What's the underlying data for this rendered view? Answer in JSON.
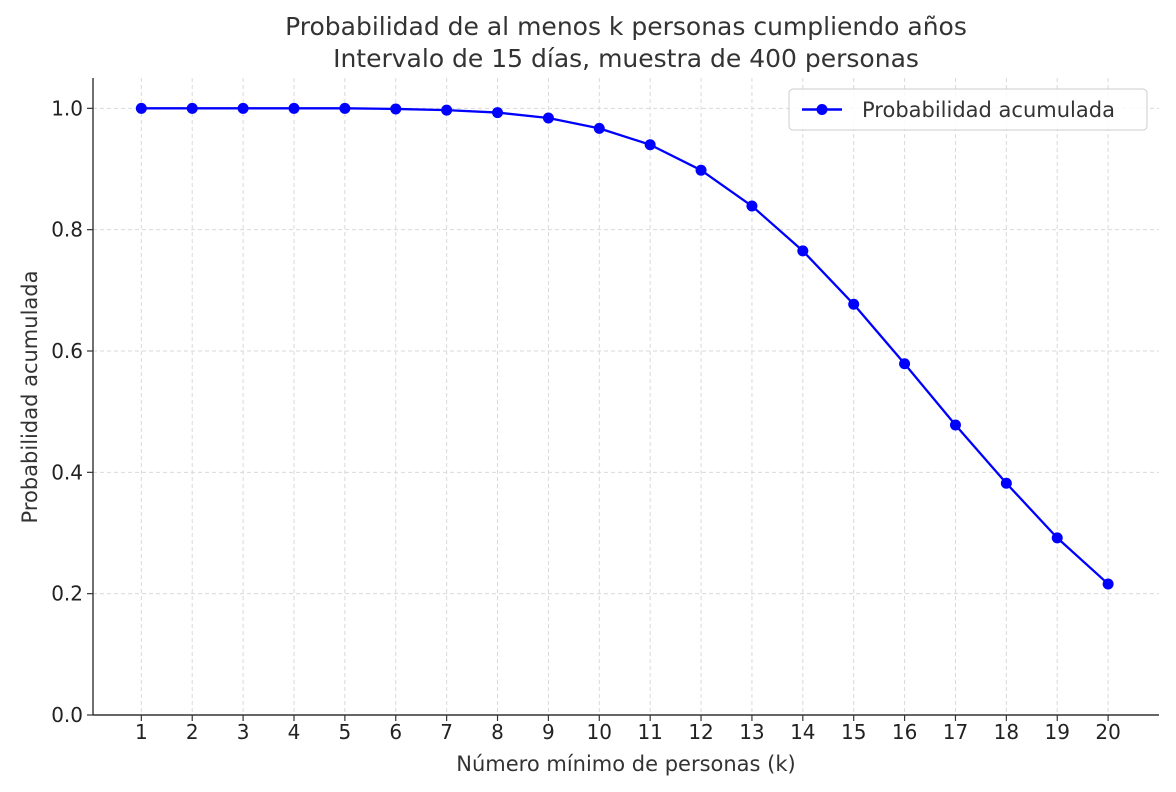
{
  "chart_data": {
    "type": "line",
    "title": "Probabilidad de al menos k personas cumpliendo años",
    "subtitle": "Intervalo de 15 días, muestra de 400 personas",
    "xlabel": "Número mínimo de personas (k)",
    "ylabel": "Probabilidad acumulada",
    "x": [
      1,
      2,
      3,
      4,
      5,
      6,
      7,
      8,
      9,
      10,
      11,
      12,
      13,
      14,
      15,
      16,
      17,
      18,
      19,
      20
    ],
    "x_tick_labels": [
      "1",
      "2",
      "3",
      "4",
      "5",
      "6",
      "7",
      "8",
      "9",
      "10",
      "11",
      "12",
      "13",
      "14",
      "15",
      "16",
      "17",
      "18",
      "19",
      "20"
    ],
    "y_ticks": [
      0.0,
      0.2,
      0.4,
      0.6,
      0.8,
      1.0
    ],
    "y_tick_labels": [
      "0.0",
      "0.2",
      "0.4",
      "0.6",
      "0.8",
      "1.0"
    ],
    "xlim": [
      0.05,
      21.0
    ],
    "ylim": [
      0.0,
      1.05
    ],
    "grid": true,
    "legend_position": "top-right",
    "series": [
      {
        "name": "Probabilidad acumulada",
        "color": "#0000ff",
        "marker": "circle",
        "values": [
          1.0,
          1.0,
          1.0,
          1.0,
          1.0,
          0.999,
          0.997,
          0.993,
          0.984,
          0.967,
          0.94,
          0.898,
          0.839,
          0.765,
          0.677,
          0.579,
          0.478,
          0.382,
          0.292,
          0.216
        ]
      }
    ]
  }
}
